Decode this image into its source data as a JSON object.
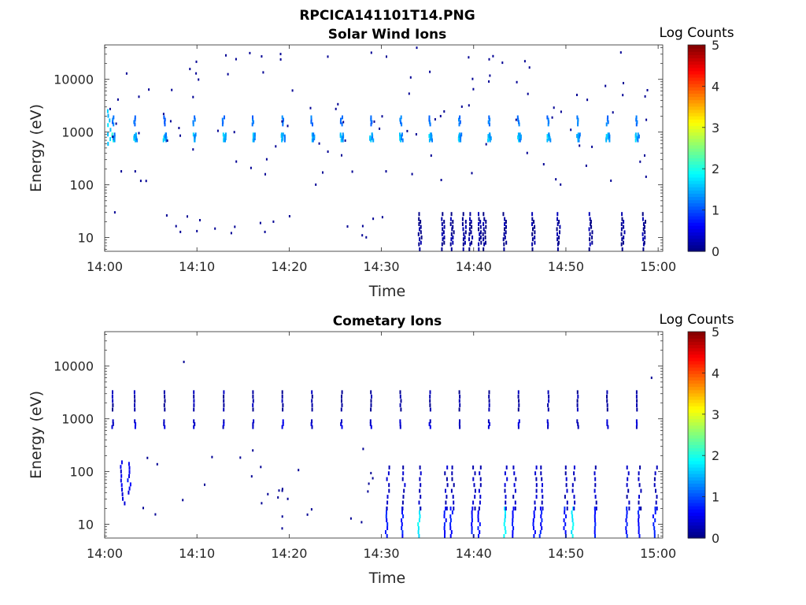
{
  "figure_title": "RPCICA141101T14.PNG",
  "colors": {
    "scale": [
      "#00008f",
      "#0000ff",
      "#00ffff",
      "#ffff00",
      "#ff0000",
      "#800000"
    ],
    "axis": "#262626"
  },
  "chart_data": [
    {
      "type": "heatmap",
      "title": "Solar Wind Ions",
      "xlabel": "Time",
      "ylabel": "Energy (eV)",
      "x_ticks": [
        "14:00",
        "14:10",
        "14:20",
        "14:30",
        "14:40",
        "14:50",
        "15:00"
      ],
      "x_range_minutes": [
        0,
        60.5
      ],
      "y_ticks": [
        "10",
        "100",
        "1000",
        "10000"
      ],
      "y_tick_values": [
        10,
        100,
        1000,
        10000
      ],
      "y_scale": "log",
      "ylim": [
        5.5,
        45000
      ],
      "colorbar": {
        "label": "Log Counts",
        "ticks": [
          "0",
          "1",
          "2",
          "3",
          "4",
          "5"
        ],
        "range": [
          0,
          5
        ],
        "colormap": "jet"
      },
      "features": {
        "pulse_period_min": 3.2,
        "pulse_times_min": [
          0.8,
          3.2,
          6.4,
          9.6,
          12.8,
          16.0,
          19.2,
          22.4,
          25.6,
          28.8,
          32.0,
          35.2,
          38.4,
          41.6,
          44.8,
          48.0,
          51.2,
          54.4,
          57.6
        ],
        "main_band_eV": [
          700,
          900
        ],
        "main_band_log_counts": 1.6,
        "second_band_eV": [
          1400,
          1900
        ],
        "second_band_log_counts": 1.2,
        "low_energy_bursts_min": [
          34.0,
          36.5,
          37.5,
          38.8,
          39.5,
          40.5,
          41.0,
          43.2,
          46.3,
          49.0,
          52.5,
          56.0,
          58.3
        ],
        "low_energy_range_eV": [
          6,
          28
        ]
      }
    },
    {
      "type": "heatmap",
      "title": "Cometary Ions",
      "xlabel": "Time",
      "ylabel": "Energy (eV)",
      "x_ticks": [
        "14:00",
        "14:10",
        "14:20",
        "14:30",
        "14:40",
        "14:50",
        "15:00"
      ],
      "x_range_minutes": [
        0,
        60.5
      ],
      "y_ticks": [
        "10",
        "100",
        "1000",
        "10000"
      ],
      "y_tick_values": [
        10,
        100,
        1000,
        10000
      ],
      "y_scale": "log",
      "ylim": [
        5.5,
        45000
      ],
      "colorbar": {
        "label": "Log Counts",
        "ticks": [
          "0",
          "1",
          "2",
          "3",
          "4",
          "5"
        ],
        "range": [
          0,
          5
        ],
        "colormap": "jet"
      },
      "features": {
        "pulse_times_min": [
          0.8,
          3.2,
          6.4,
          9.6,
          12.8,
          16.0,
          19.2,
          22.4,
          25.6,
          28.8,
          32.0,
          35.2,
          38.4,
          41.6,
          44.8,
          48.0,
          51.2,
          54.4,
          57.6
        ],
        "main_band_eV": [
          700,
          900
        ],
        "main_band_log_counts": 0.4,
        "low_energy_events_min": [
          1.5,
          2.5,
          30.5,
          32.2,
          34.0,
          36.8,
          37.5,
          39.8,
          40.5,
          43.3,
          44.2,
          46.5,
          47.2,
          49.8,
          50.6,
          53.0,
          56.5,
          57.8,
          59.5
        ],
        "low_energy_range_eV": [
          6,
          120
        ],
        "peak_event_log_counts": 1.8
      }
    }
  ]
}
